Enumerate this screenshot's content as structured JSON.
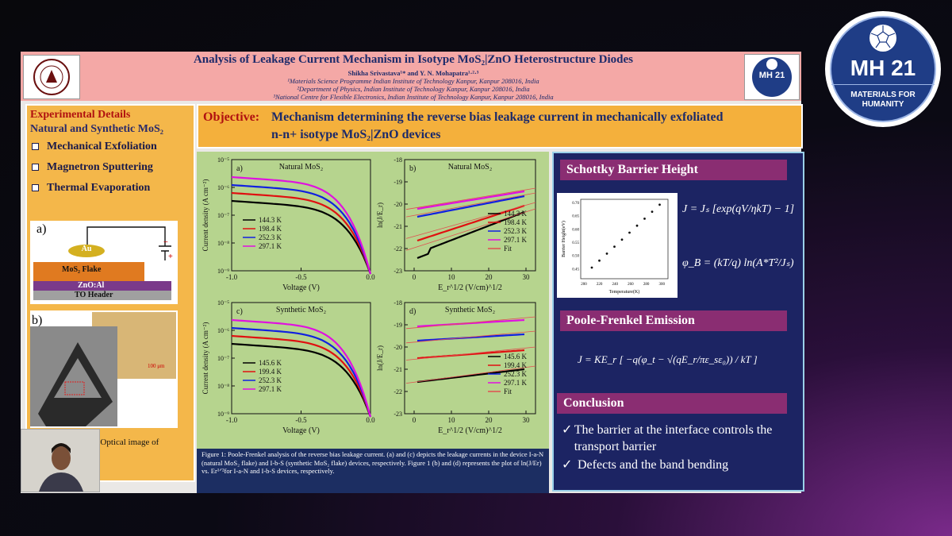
{
  "poster": {
    "title": "Analysis of Leakage Current Mechanism in Isotype MoS₂|ZnO Heterostructure Diodes",
    "authors": "Shikha Srivastava¹* and Y. N. Mohapatra¹·²·³",
    "affil1": "¹Materials Science Programme Indian Institute of Technology Kanpur, Kanpur 208016, India",
    "affil2": "²Department of Physics, Indian Institute of Technology Kanpur, Kanpur 208016, India",
    "affil3": "³National Centre for Flexible Electronics, Indian Institute of Technology Kanpur, Kanpur 208016, India",
    "right_logo_text": "MH 21"
  },
  "left": {
    "heading": "Experimental Details",
    "subheading": "Natural and Synthetic MoS₂",
    "items": [
      "Mechanical Exfoliation",
      "Magnetron Sputtering",
      "Thermal Evaporation"
    ],
    "fig_a_label": "a)",
    "fig_a_au": "Au",
    "fig_a_flake": "MoS₂ Flake",
    "fig_a_zno": "ZnO:Al",
    "fig_a_header": "TO Header",
    "fig_b_label": "b)",
    "scale": "100 μm",
    "caption_frag": ") Optical image of"
  },
  "objective": {
    "label": "Objective:",
    "text1": "Mechanism determining the reverse bias leakage current in mechanically exfoliated",
    "text2": "n-n+ isotype MoS₂|ZnO devices"
  },
  "figure": {
    "caption": "Figure 1: Poole-Frenkel analysis of the reverse bias leakage current. (a) and (c) depicts the leakage currents in the device I-a-N (natural MoS₂ flake) and I-b-S (synthetic MoS₂ flake) devices, respectively. Figure 1 (b) and (d) represents the plot of ln(J/Er) vs. Er¹ᐟ²for I-a-N and I-b-S devices, respectively.",
    "plots": {
      "a": {
        "label": "a)",
        "title": "Natural MoS₂",
        "ylabel": "Current density (A cm⁻²)",
        "xlabel": "Voltage (V)",
        "xticks": [
          "-1.0",
          "-0.5",
          "0.0"
        ],
        "yticks": [
          "10⁻⁵",
          "10⁻⁶",
          "10⁻⁷",
          "10⁻⁸",
          "10⁻⁹"
        ],
        "legend": [
          "144.3 K",
          "198.4 K",
          "252.3 K",
          "297.1 K"
        ]
      },
      "b": {
        "label": "b)",
        "title": "Natural MoS₂",
        "ylabel": "ln(J/E_r)",
        "xlabel": "E_r^1/2 (V/cm)^1/2",
        "xticks": [
          "0",
          "10",
          "20",
          "30"
        ],
        "yticks": [
          "-18",
          "-19",
          "-20",
          "-21",
          "-22",
          "-23"
        ],
        "legend": [
          "144.3 K",
          "198.4 K",
          "252.3 K",
          "297.1 K",
          "Fit"
        ]
      },
      "c": {
        "label": "c)",
        "title": "Synthetic MoS₂",
        "ylabel": "Current density (A cm⁻²)",
        "xlabel": "Voltage (V)",
        "xticks": [
          "-1.0",
          "-0.5",
          "0.0"
        ],
        "yticks": [
          "10⁻⁵",
          "10⁻⁶",
          "10⁻⁷",
          "10⁻⁸",
          "10⁻⁹"
        ],
        "legend": [
          "145.6 K",
          "199.4 K",
          "252.3 K",
          "297.1 K"
        ]
      },
      "d": {
        "label": "d)",
        "title": "Synthetic MoS₂",
        "ylabel": "ln(J/E_r)",
        "xlabel": "E_r^1/2 (V/cm)^1/2",
        "xticks": [
          "0",
          "10",
          "20",
          "30"
        ],
        "yticks": [
          "-18",
          "-19",
          "-20",
          "-21",
          "-22",
          "-23"
        ],
        "legend": [
          "145.6 K",
          "199.4 K",
          "252.3 K",
          "297.1 K",
          "Fit"
        ]
      }
    }
  },
  "right": {
    "schottky_head": "Schottky Barrier Height",
    "inset_ylabel": "Barrier Height(eV)",
    "inset_xlabel": "Temperature(K)",
    "inset_yticks": [
      "0.70",
      "0.65",
      "0.60",
      "0.55",
      "0.50",
      "0.45"
    ],
    "inset_xticks": [
      "200",
      "220",
      "240",
      "260",
      "280",
      "300"
    ],
    "eq1": "J = Jₛ [exp(qV/ηkT) − 1]",
    "eq2": "φ_B = (kT/q) ln(A*T²/Jₛ)",
    "pf_head": "Poole-Frenkel  Emission",
    "eq3": "J = KE_r [ −q(φ_t − √(qE_r/πε_sε₀)) / kT ]",
    "conclusion_head": "Conclusion",
    "conclusions": [
      "The barrier at the interface controls the transport barrier",
      "Defects and the band bending"
    ]
  },
  "badge": {
    "title": "MH 21",
    "subtitle1": "MATERIALS FOR",
    "subtitle2": "HUMANITY"
  },
  "colors": {
    "series": [
      "#000000",
      "#e01010",
      "#1020e0",
      "#e010e0"
    ],
    "fit": "#e05050"
  }
}
